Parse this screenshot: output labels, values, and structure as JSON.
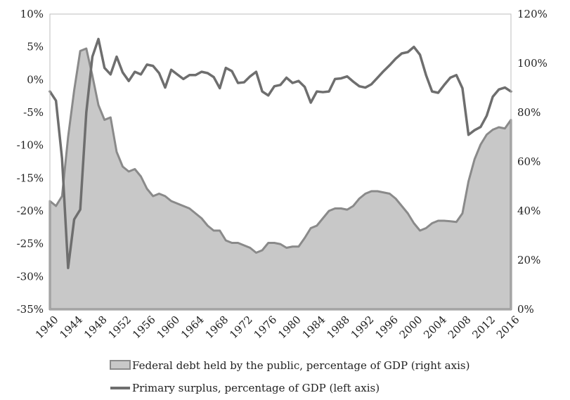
{
  "chart_data": {
    "type": "line",
    "title": "",
    "grid": false,
    "legend_position": "bottom",
    "colors": {
      "area_fill": "#c8c8c8",
      "area_stroke": "#8a8a8a",
      "line": "#6e6e6e",
      "axis": "#bdbdbd"
    },
    "left_axis": {
      "range": [
        -35,
        10
      ],
      "ticks": [
        10,
        5,
        0,
        -5,
        -10,
        -15,
        -20,
        -25,
        -30,
        -35
      ],
      "tick_labels": [
        "10%",
        "5%",
        "0%",
        "-5%",
        "-10%",
        "-15%",
        "-20%",
        "-25%",
        "-30%",
        "-35%"
      ]
    },
    "right_axis": {
      "range": [
        0,
        120
      ],
      "ticks": [
        120,
        100,
        80,
        60,
        40,
        20,
        0
      ],
      "tick_labels": [
        "120%",
        "100%",
        "80%",
        "60%",
        "40%",
        "20%",
        "0%"
      ]
    },
    "x_axis": {
      "range": [
        1940,
        2016
      ],
      "ticks": [
        1940,
        1944,
        1948,
        1952,
        1956,
        1960,
        1964,
        1968,
        1972,
        1976,
        1980,
        1984,
        1988,
        1992,
        1996,
        2000,
        2004,
        2008,
        2012,
        2016
      ],
      "tick_labels": [
        "1940",
        "1944",
        "1948",
        "1952",
        "1956",
        "1960",
        "1964",
        "1968",
        "1972",
        "1976",
        "1980",
        "1984",
        "1988",
        "1992",
        "1996",
        "2000",
        "2004",
        "2008",
        "2012",
        "2016"
      ]
    },
    "legend": [
      {
        "label": "Federal debt held by the public, percentage of GDP (right axis)",
        "kind": "area"
      },
      {
        "label": "Primary surplus, percentage of GDP (left axis)",
        "kind": "line"
      }
    ],
    "x": [
      1940,
      1941,
      1942,
      1943,
      1944,
      1945,
      1946,
      1947,
      1948,
      1949,
      1950,
      1951,
      1952,
      1953,
      1954,
      1955,
      1956,
      1957,
      1958,
      1959,
      1960,
      1961,
      1962,
      1963,
      1964,
      1965,
      1966,
      1967,
      1968,
      1969,
      1970,
      1971,
      1972,
      1973,
      1974,
      1975,
      1976,
      1977,
      1978,
      1979,
      1980,
      1981,
      1982,
      1983,
      1984,
      1985,
      1986,
      1987,
      1988,
      1989,
      1990,
      1991,
      1992,
      1993,
      1994,
      1995,
      1996,
      1997,
      1998,
      1999,
      2000,
      2001,
      2002,
      2003,
      2004,
      2005,
      2006,
      2007,
      2008,
      2009,
      2010,
      2011,
      2012,
      2013,
      2014,
      2015,
      2016
    ],
    "series": [
      {
        "name": "Federal debt held by the public, percentage of GDP (right axis)",
        "axis": "right",
        "kind": "area",
        "values": [
          44,
          42,
          46,
          70,
          89,
          105,
          106,
          95,
          83,
          77,
          78,
          64,
          58,
          56,
          57,
          54,
          49,
          46,
          47,
          46,
          44,
          43,
          42,
          41,
          39,
          37,
          34,
          32,
          32,
          28,
          27,
          27,
          26,
          25,
          23,
          24,
          27,
          27,
          26.5,
          25,
          25.5,
          25.5,
          29,
          33,
          34,
          37,
          40,
          41,
          41,
          40.5,
          42,
          45,
          47,
          48,
          48,
          47.5,
          47,
          45,
          42,
          39,
          35,
          32,
          33,
          35,
          36,
          36,
          35.8,
          35.5,
          39,
          52,
          61,
          67,
          71,
          73,
          74,
          73.5,
          77
        ]
      },
      {
        "name": "Primary surplus, percentage of GDP (left axis)",
        "axis": "left",
        "kind": "line",
        "values": [
          -1.8,
          -3.2,
          -12,
          -28.7,
          -21.3,
          -19.8,
          -5,
          3.5,
          6.2,
          1.8,
          0.8,
          3.5,
          1.1,
          -0.2,
          1.2,
          0.8,
          2.3,
          2.1,
          1,
          -1.2,
          1.5,
          0.8,
          0.1,
          0.7,
          0.7,
          1.2,
          1,
          0.4,
          -1.3,
          1.8,
          1.3,
          -0.5,
          -0.4,
          0.5,
          1.2,
          -1.8,
          -2.4,
          -1,
          -0.8,
          0.3,
          -0.5,
          -0.2,
          -1.1,
          -3.5,
          -1.8,
          -1.9,
          -1.8,
          0.1,
          0.2,
          0.5,
          -0.3,
          -1,
          -1.2,
          -0.7,
          0.3,
          1.3,
          2.2,
          3.2,
          4,
          4.2,
          5,
          3.8,
          0.7,
          -1.8,
          -2,
          -0.8,
          0.3,
          0.7,
          -1.3,
          -8.4,
          -7.7,
          -7.2,
          -5.5,
          -2.6,
          -1.5,
          -1.2,
          -1.8
        ]
      }
    ]
  }
}
